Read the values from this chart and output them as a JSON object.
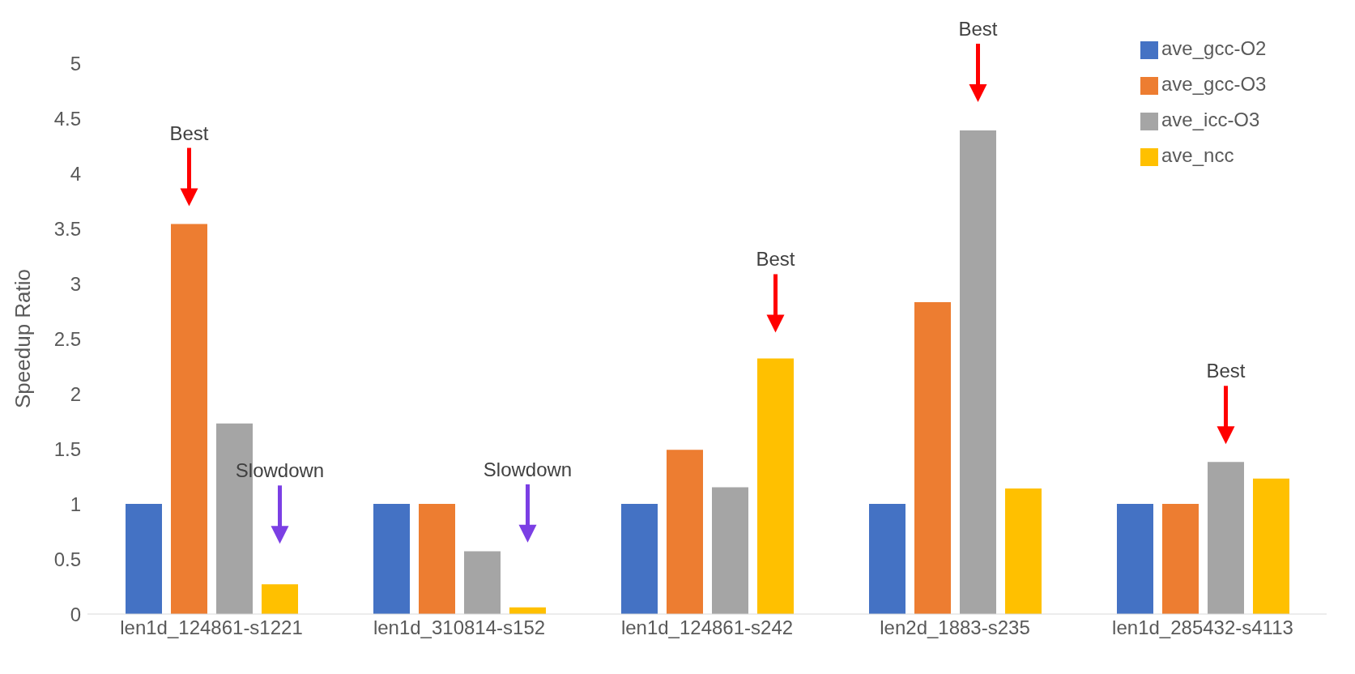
{
  "chart_data": {
    "type": "bar",
    "ylabel": "Speedup Ratio",
    "categories": [
      "len1d_124861-s1221",
      "len1d_310814-s152",
      "len1d_124861-s242",
      "len2d_1883-s235",
      "len1d_285432-s4113"
    ],
    "series": [
      {
        "name": "ave_gcc-O2",
        "color": "#4472c4",
        "values": [
          1,
          1,
          1,
          1,
          1
        ]
      },
      {
        "name": "ave_gcc-O3",
        "color": "#ed7d31",
        "values": [
          3.54,
          1,
          1.49,
          2.83,
          1
        ]
      },
      {
        "name": "ave_icc-O3",
        "color": "#a5a5a5",
        "values": [
          1.73,
          0.57,
          1.15,
          4.39,
          1.38
        ]
      },
      {
        "name": "ave_ncc",
        "color": "#ffc000",
        "values": [
          0.27,
          0.06,
          2.32,
          1.14,
          1.23
        ]
      }
    ],
    "ylim": [
      0,
      5
    ],
    "yticks": [
      0,
      0.5,
      1,
      1.5,
      2,
      2.5,
      3,
      3.5,
      4,
      4.5,
      5
    ],
    "legend": "top right",
    "annotations": [
      "Best",
      "Slowdown",
      "Slowdown",
      "Best",
      "Best",
      "Best"
    ]
  }
}
